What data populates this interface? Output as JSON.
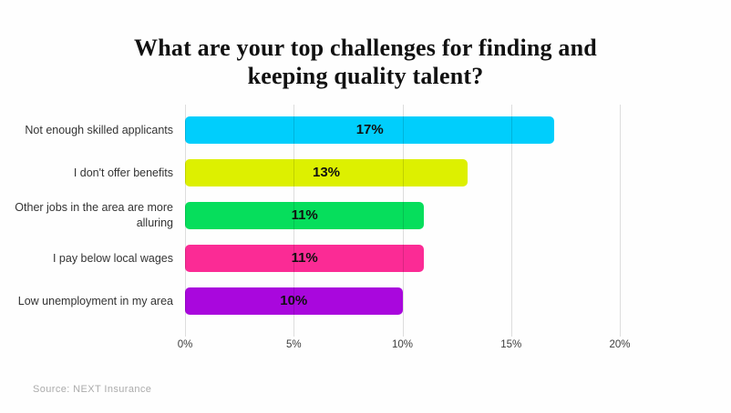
{
  "title": "What are your top challenges for finding and keeping quality talent?",
  "source": "Source: NEXT Insurance",
  "chart_data": {
    "type": "bar",
    "orientation": "horizontal",
    "title": "What are your top challenges for finding and keeping quality talent?",
    "categories": [
      "Not enough skilled applicants",
      "I don't offer benefits",
      "Other jobs in the area are more alluring",
      "I pay below local wages",
      "Low unemployment in my area"
    ],
    "values": [
      17,
      13,
      11,
      11,
      10
    ],
    "value_labels": [
      "17%",
      "13%",
      "11%",
      "11%",
      "10%"
    ],
    "bar_colors": [
      "#00CEFC",
      "#DDF000",
      "#06DE5C",
      "#FB2B95",
      "#A907DD"
    ],
    "x_ticks": [
      "0%",
      "5%",
      "10%",
      "15%",
      "20%"
    ],
    "x_tick_values": [
      0,
      5,
      10,
      15,
      20
    ],
    "xlim": [
      0,
      20
    ],
    "xlabel": "",
    "ylabel": "",
    "grid": true,
    "legend": false
  }
}
